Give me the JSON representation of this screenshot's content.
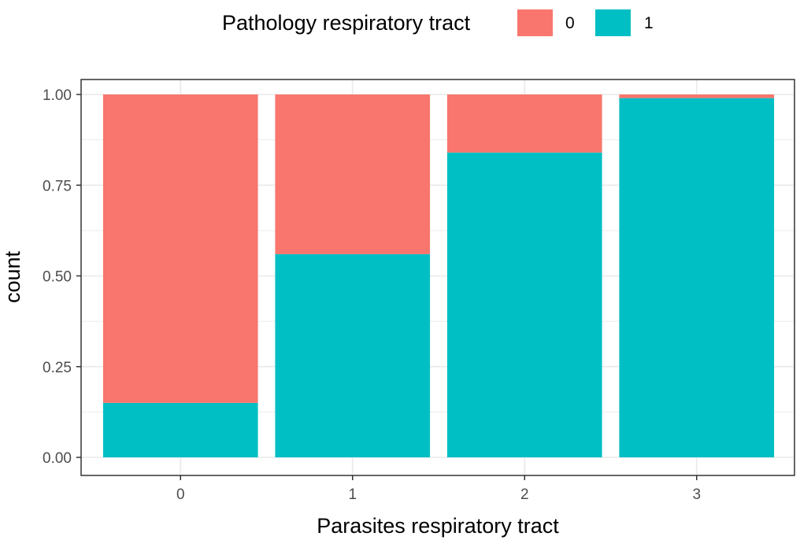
{
  "chart_data": {
    "type": "bar",
    "stacked": true,
    "title": "",
    "xlabel": "Parasites respiratory tract",
    "ylabel": "count",
    "categories": [
      "0",
      "1",
      "2",
      "3"
    ],
    "ylim": [
      0,
      1
    ],
    "yticks": [
      "0.00",
      "0.25",
      "0.50",
      "0.75",
      "1.00"
    ],
    "ytick_values": [
      0,
      0.25,
      0.5,
      0.75,
      1.0
    ],
    "grid": true,
    "legend": {
      "title": "Pathology respiratory tract",
      "position": "top",
      "entries": [
        {
          "label": "0",
          "color": "#F8766D"
        },
        {
          "label": "1",
          "color": "#00BFC4"
        }
      ]
    },
    "series": [
      {
        "name": "1",
        "color": "#00BFC4",
        "values": [
          0.15,
          0.56,
          0.84,
          0.99
        ]
      },
      {
        "name": "0",
        "color": "#F8766D",
        "values": [
          0.85,
          0.44,
          0.16,
          0.01
        ]
      }
    ]
  }
}
